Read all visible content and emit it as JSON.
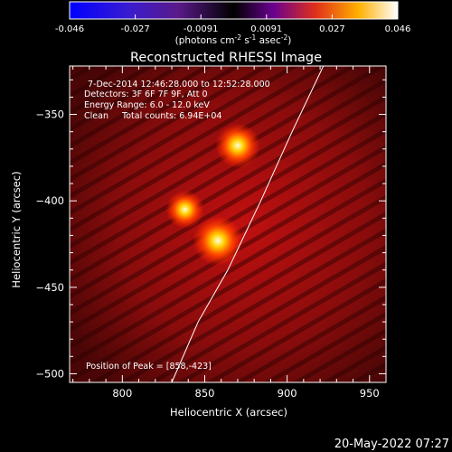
{
  "colorbar": {
    "ticks": [
      "-0.046",
      "-0.027",
      "-0.0091",
      "0.0091",
      "0.027",
      "0.046"
    ],
    "units_prefix": "(photons cm",
    "units_exp1": "-2",
    "units_mid": " s",
    "units_exp2": "-1",
    "units_mid2": " asec",
    "units_exp3": "-2",
    "units_suffix": ")"
  },
  "header": {
    "time": "7-Dec-2014 12:46:28.000 to 12:52:28.000",
    "detectors": "Detectors: 3F 6F 7F 9F, Att 0",
    "energy": "Energy Range: 6.0 - 12.0 keV",
    "clean": "Clean     Total counts: 6.94E+04"
  },
  "peak_label": "Position of Peak = [858,-423]",
  "footer_date": "20-May-2022 07:27",
  "chart_data": {
    "type": "heatmap",
    "title": "Reconstructed RHESSI Image",
    "xlabel": "Heliocentric X (arcsec)",
    "ylabel": "Heliocentric Y (arcsec)",
    "xlim": [
      768,
      960
    ],
    "ylim": [
      -505,
      -322
    ],
    "x_ticks": [
      800,
      850,
      900,
      950
    ],
    "y_ticks": [
      -350,
      -400,
      -450,
      -500
    ],
    "colormap": "hot",
    "color_range": [
      -0.046,
      0.046
    ],
    "sources": [
      {
        "x": 858,
        "y": -423,
        "peak": 0.046
      },
      {
        "x": 870,
        "y": -368,
        "peak": 0.036
      },
      {
        "x": 838,
        "y": -405,
        "peak": 0.024
      }
    ],
    "limb_curve": [
      {
        "x": 830,
        "y": -505
      },
      {
        "x": 846,
        "y": -470
      },
      {
        "x": 864,
        "y": -440
      },
      {
        "x": 884,
        "y": -400
      },
      {
        "x": 903,
        "y": -360
      },
      {
        "x": 922,
        "y": -322
      }
    ]
  }
}
